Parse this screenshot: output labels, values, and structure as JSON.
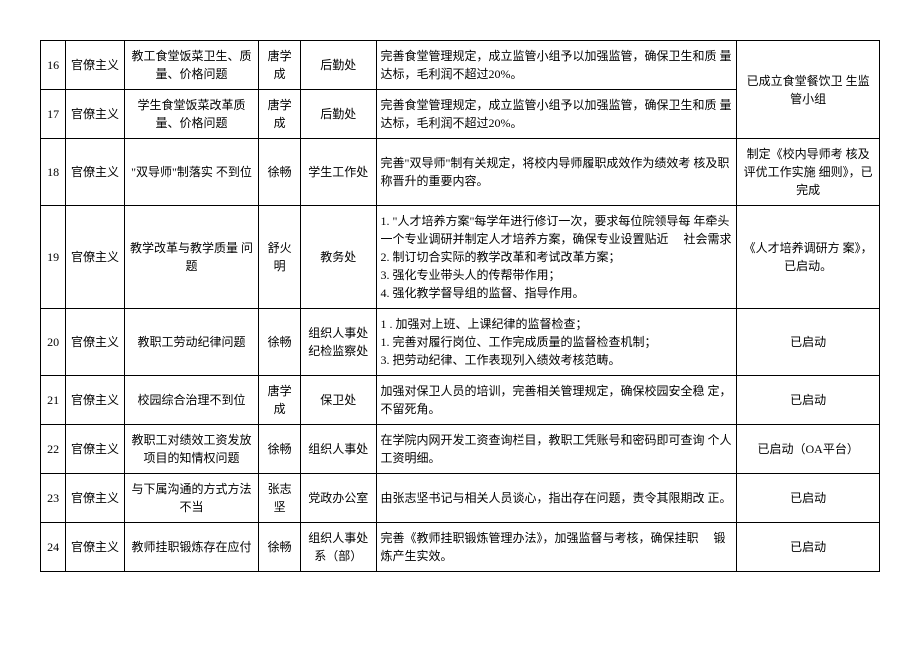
{
  "table": {
    "rows": [
      {
        "num": "16",
        "cat": "官僚主义",
        "issue": "教工食堂饭菜卫生、质 量、价格问题",
        "person": "唐学成",
        "dept": "后勤处",
        "measure": "完善食堂管理规定，成立监管小组予以加强监管，确保卫生和质 量达标，毛利润不超过20%。",
        "status": "已成立食堂餐饮卫 生监管小组"
      },
      {
        "num": "17",
        "cat": "官僚主义",
        "issue": "学生食堂饭菜改革质 量、价格问题",
        "person": "唐学成",
        "dept": "后勤处",
        "measure": "完善食堂管理规定，成立监管小组予以加强监管，确保卫生和质 量达标，毛利润不超过20%。",
        "status": ""
      },
      {
        "num": "18",
        "cat": "官僚主义",
        "issue": "\"双导师\"制落实 不到位",
        "person": "徐畅",
        "dept": "学生工作处",
        "measure": "完善\"双导师\"制有关规定，将校内导师履职成效作为绩效考 核及职称晋升的重要内容。",
        "status": "制定《校内导师考 核及评优工作实施 细则》，已完成"
      },
      {
        "num": "19",
        "cat": "官僚主义",
        "issue": "教学改革与教学质量 问题",
        "person": "舒火明",
        "dept": "教务处",
        "measure": "1. \"人才培养方案\"每学年进行修订一次，要求每位院领导每 年牵头一个专业调研并制定人才培养方案，确保专业设置贴近　 社会需求\n2. 制订切合实际的教学改革和考试改革方案；\n3. 强化专业带头人的传帮带作用；\n4. 强化教学督导组的监督、指导作用。",
        "status": "《人才培养调研方 案》，已启动。"
      },
      {
        "num": "20",
        "cat": "官僚主义",
        "issue": "教职工劳动纪律问题",
        "person": "徐畅",
        "dept": "组织人事处 纪检监察处",
        "measure": "1 . 加强对上班、上课纪律的监督检查；\n1. 完善对履行岗位、工作完成质量的监督检查机制；\n3. 把劳动纪律、工作表现列入绩效考核范畴。",
        "status": "已启动"
      },
      {
        "num": "21",
        "cat": "官僚主义",
        "issue": "校园综合治理不到位",
        "person": "唐学成",
        "dept": "保卫处",
        "measure": "加强对保卫人员的培训，完善相关管理规定，确保校园安全稳 定，不留死角。",
        "status": "已启动"
      },
      {
        "num": "22",
        "cat": "官僚主义",
        "issue": "教职工对绩效工资发放 项目的知情权问题",
        "person": "徐畅",
        "dept": "组织人事处",
        "measure": "在学院内网开发工资查询栏目，教职工凭账号和密码即可查询 个人工资明细。",
        "status": "已启动（OA平台）"
      },
      {
        "num": "23",
        "cat": "官僚主义",
        "issue": "与下属沟通的方式方法 不当",
        "person": "张志坚",
        "dept": "党政办公室",
        "measure": "由张志坚书记与相关人员谈心，指出存在问题，责令其限期改 正。",
        "status": "已启动"
      },
      {
        "num": "24",
        "cat": "官僚主义",
        "issue": "教师挂职锻炼存在应付",
        "person": "徐畅",
        "dept": "组织人事处 系（部）",
        "measure": "完善《教师挂职锻炼管理办法》，加强监督与考核，确保挂职　 锻炼产生实效。",
        "status": "已启动"
      }
    ]
  }
}
